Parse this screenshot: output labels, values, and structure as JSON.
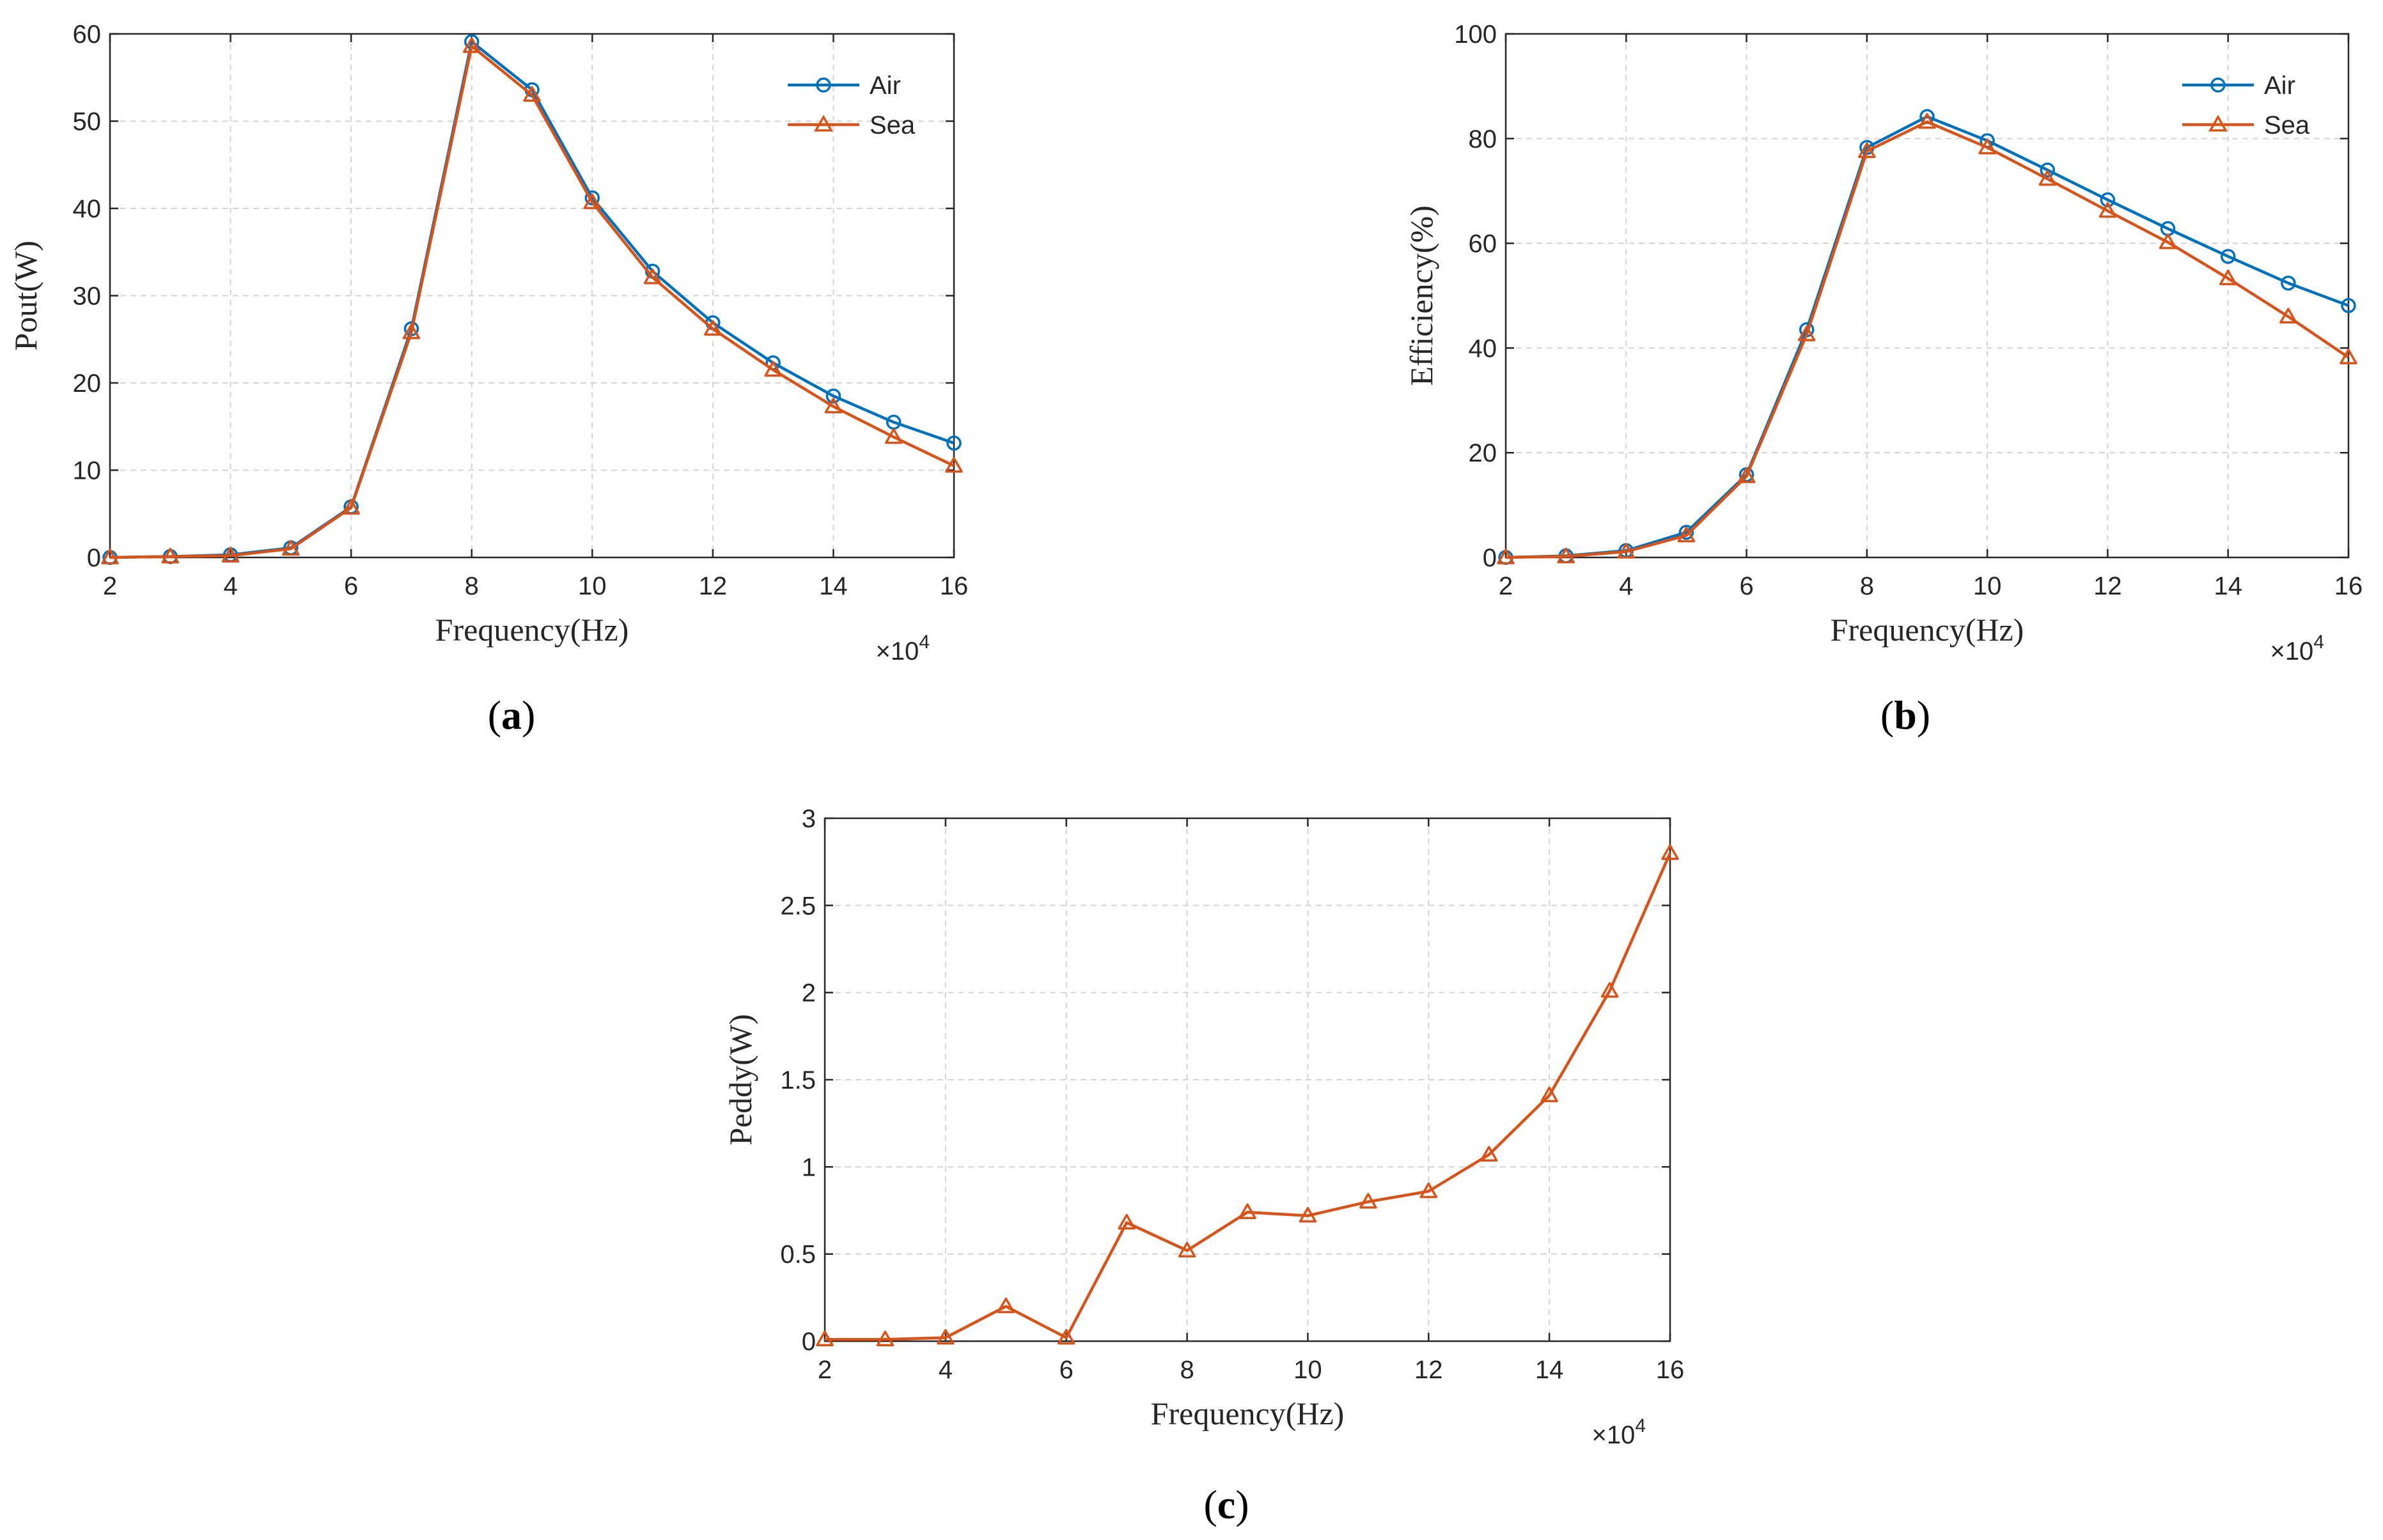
{
  "colors": {
    "air": "#0072BD",
    "sea": "#D95319",
    "grid": "#d4d4d4",
    "axis": "#262626"
  },
  "chart_data": [
    {
      "id": "a",
      "type": "line",
      "caption_letter": "a",
      "xlabel": "Frequency(Hz)",
      "ylabel": "Pout(W)",
      "exponent_label": "×10",
      "exponent_power": "4",
      "xlim": [
        2,
        16
      ],
      "ylim": [
        0,
        60
      ],
      "xticks": [
        2,
        4,
        6,
        8,
        10,
        12,
        14,
        16
      ],
      "yticks": [
        0,
        10,
        20,
        30,
        40,
        50,
        60
      ],
      "grid": true,
      "legend": "top-right",
      "x": [
        2,
        3,
        4,
        5,
        6,
        7,
        8,
        9,
        10,
        11,
        12,
        13,
        14,
        15,
        16
      ],
      "series": [
        {
          "name": "Air",
          "marker": "circle",
          "color": "#0072BD",
          "values": [
            0,
            0.1,
            0.3,
            1.1,
            5.8,
            26.2,
            59.1,
            53.6,
            41.2,
            32.8,
            26.9,
            22.3,
            18.5,
            15.5,
            13.1
          ]
        },
        {
          "name": "Sea",
          "marker": "triangle",
          "color": "#D95319",
          "values": [
            0,
            0.1,
            0.2,
            1.0,
            5.7,
            25.8,
            58.6,
            53.0,
            40.7,
            32.1,
            26.2,
            21.5,
            17.3,
            13.8,
            10.5
          ]
        }
      ]
    },
    {
      "id": "b",
      "type": "line",
      "caption_letter": "b",
      "xlabel": "Frequency(Hz)",
      "ylabel": "Efficiency(%)",
      "exponent_label": "×10",
      "exponent_power": "4",
      "xlim": [
        2,
        16
      ],
      "ylim": [
        0,
        100
      ],
      "xticks": [
        2,
        4,
        6,
        8,
        10,
        12,
        14,
        16
      ],
      "yticks": [
        0,
        20,
        40,
        60,
        80,
        100
      ],
      "grid": true,
      "legend": "top-right",
      "x": [
        2,
        3,
        4,
        5,
        6,
        7,
        8,
        9,
        10,
        11,
        12,
        13,
        14,
        15,
        16
      ],
      "series": [
        {
          "name": "Air",
          "marker": "circle",
          "color": "#0072BD",
          "values": [
            0,
            0.3,
            1.3,
            4.8,
            15.8,
            43.5,
            78.3,
            84.2,
            79.6,
            74.0,
            68.3,
            62.8,
            57.5,
            52.4,
            48.1
          ]
        },
        {
          "name": "Sea",
          "marker": "triangle",
          "color": "#D95319",
          "values": [
            0,
            0.2,
            1.1,
            4.2,
            15.5,
            42.6,
            77.6,
            83.2,
            78.3,
            72.3,
            66.2,
            60.2,
            53.3,
            46.0,
            38.2
          ]
        }
      ]
    },
    {
      "id": "c",
      "type": "line",
      "caption_letter": "c",
      "xlabel": "Frequency(Hz)",
      "ylabel": "Peddy(W)",
      "exponent_label": "×10",
      "exponent_power": "4",
      "xlim": [
        2,
        16
      ],
      "ylim": [
        0,
        3
      ],
      "xticks": [
        2,
        4,
        6,
        8,
        10,
        12,
        14,
        16
      ],
      "yticks": [
        0,
        0.5,
        1,
        1.5,
        2,
        2.5,
        3
      ],
      "grid": true,
      "legend": "none",
      "x": [
        2,
        3,
        4,
        5,
        6,
        7,
        8,
        9,
        10,
        11,
        12,
        13,
        14,
        15,
        16
      ],
      "series": [
        {
          "name": "Peddy",
          "marker": "triangle",
          "color": "#D95319",
          "values": [
            0.01,
            0.01,
            0.02,
            0.2,
            0.02,
            0.68,
            0.52,
            0.74,
            0.72,
            0.8,
            0.86,
            1.07,
            1.41,
            2.01,
            2.8
          ]
        }
      ]
    }
  ]
}
